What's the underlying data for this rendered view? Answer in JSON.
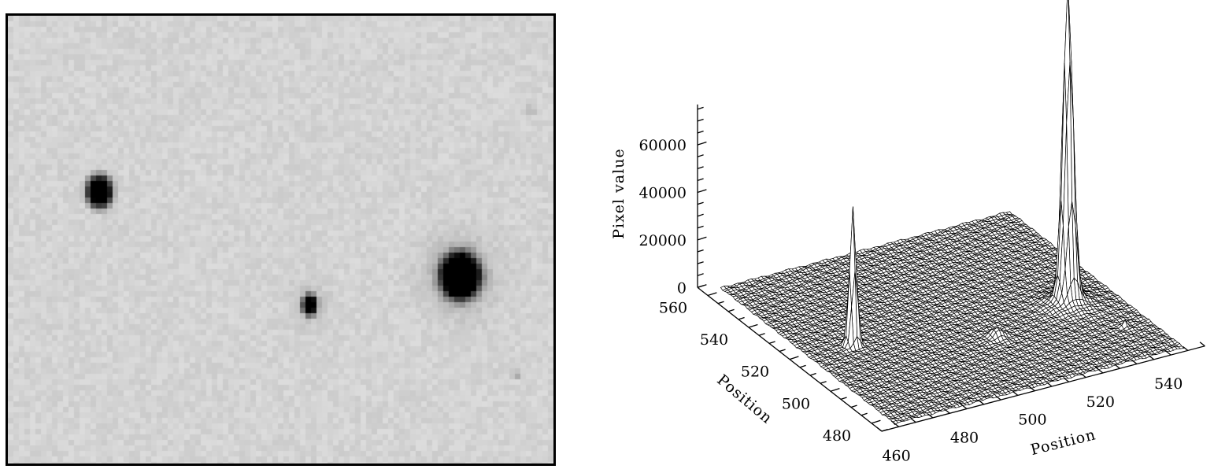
{
  "image_panel": {
    "background_gray": "#d4d4d4",
    "sources": [
      {
        "name": "star-left",
        "brightness": "high"
      },
      {
        "name": "star-right",
        "brightness": "saturated"
      },
      {
        "name": "star-middle",
        "brightness": "medium"
      },
      {
        "name": "faint-top-right",
        "brightness": "faint"
      },
      {
        "name": "faint-bottom-right",
        "brightness": "faint"
      }
    ]
  },
  "chart_data": {
    "type": "surface",
    "title": "",
    "xlabel": "Position",
    "ylabel": "Position",
    "zlabel": "Pixel value",
    "x_ticks": [
      "460",
      "480",
      "500",
      "520",
      "540"
    ],
    "y_ticks": [
      "480",
      "500",
      "520",
      "540",
      "560"
    ],
    "z_ticks": [
      "0",
      "20000",
      "40000",
      "60000"
    ],
    "xlim": [
      455,
      550
    ],
    "ylim": [
      475,
      565
    ],
    "zlim": [
      0,
      77000
    ],
    "surface_x_range": [
      460,
      545
    ],
    "surface_y_range": [
      477,
      562
    ],
    "background_level": 0,
    "peaks": [
      {
        "x": 532,
        "y": 512,
        "amplitude": 130000,
        "sigma": 1.3,
        "note_clipped": true
      },
      {
        "x": 473,
        "y": 519,
        "amplitude": 58000,
        "sigma": 0.9
      },
      {
        "x": 507,
        "y": 505,
        "amplitude": 4000,
        "sigma": 1.5
      },
      {
        "x": 538,
        "y": 494,
        "amplitude": 2500,
        "sigma": 0.6
      }
    ],
    "grid": false,
    "colors": {
      "mesh": "#000000",
      "fill": "#ffffff"
    }
  }
}
